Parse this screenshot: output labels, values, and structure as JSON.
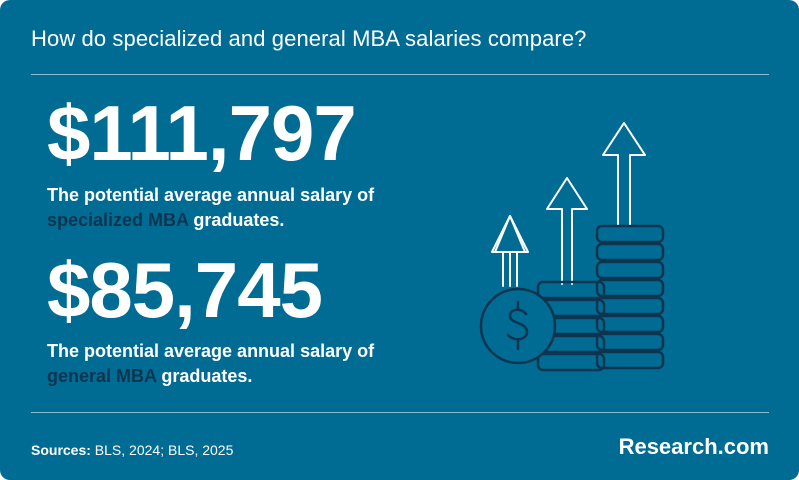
{
  "header": {
    "title": "How do specialized and general MBA salaries compare?"
  },
  "stats": [
    {
      "value": "$111,797",
      "line1": "The potential average annual salary of",
      "highlight": "specialized MBA",
      "after": " graduates."
    },
    {
      "value": "$85,745",
      "line1": "The potential average annual salary of",
      "highlight": "general MBA",
      "after": " graduates."
    }
  ],
  "footer": {
    "sources_label": "Sources:",
    "sources_text": " BLS, 2024; BLS, 2025",
    "brand": "Research.com"
  },
  "colors": {
    "background": "#006c93",
    "highlight": "#0d3550",
    "text": "#ffffff"
  },
  "illustration": {
    "icon": "coin-stacks-with-rising-arrows-icon"
  }
}
